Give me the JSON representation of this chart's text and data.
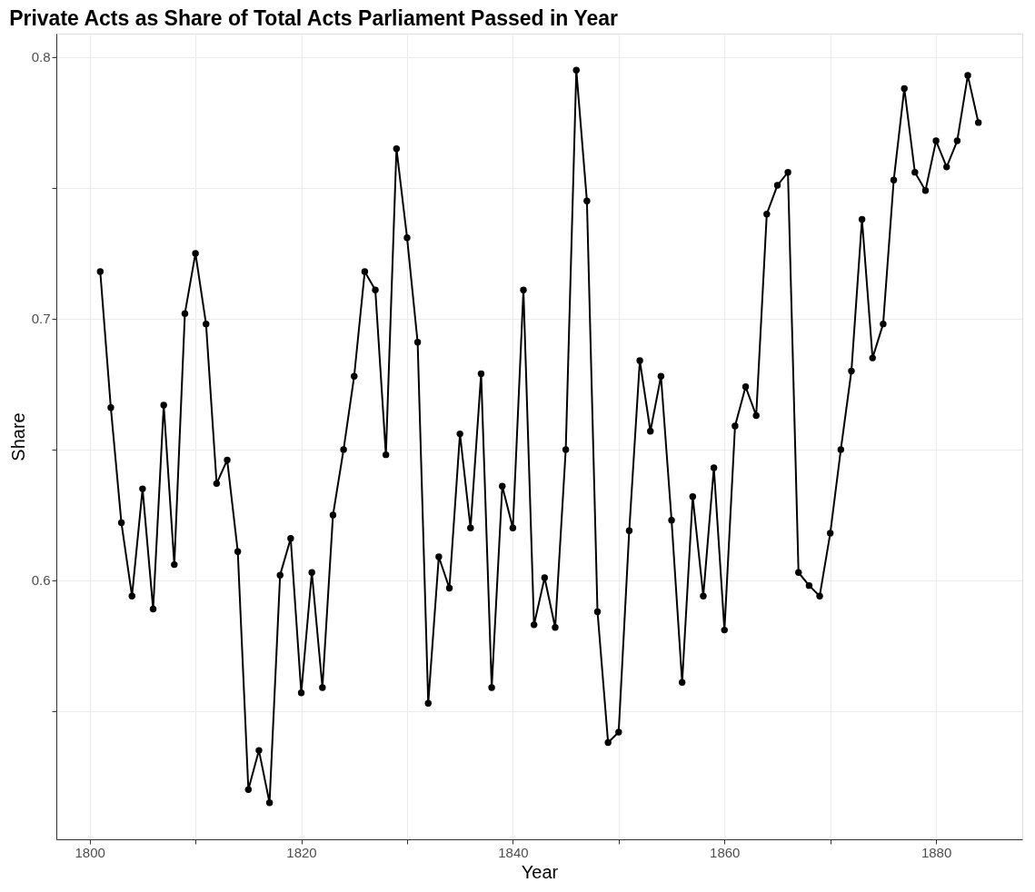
{
  "chart_data": {
    "type": "line",
    "title": "Private Acts as Share of Total Acts Parliament Passed in Year",
    "xlabel": "Year",
    "ylabel": "Share",
    "x": [
      1801,
      1802,
      1803,
      1804,
      1805,
      1806,
      1807,
      1808,
      1809,
      1810,
      1811,
      1812,
      1813,
      1814,
      1815,
      1816,
      1817,
      1818,
      1819,
      1820,
      1821,
      1822,
      1823,
      1824,
      1825,
      1826,
      1827,
      1828,
      1829,
      1830,
      1831,
      1832,
      1833,
      1834,
      1835,
      1836,
      1837,
      1838,
      1839,
      1840,
      1841,
      1842,
      1843,
      1844,
      1845,
      1846,
      1847,
      1848,
      1849,
      1850,
      1851,
      1852,
      1853,
      1854,
      1855,
      1856,
      1857,
      1858,
      1859,
      1860,
      1861,
      1862,
      1863,
      1864,
      1865,
      1866,
      1867,
      1868,
      1869,
      1870,
      1871,
      1872,
      1873,
      1874,
      1875,
      1876,
      1877,
      1878,
      1879,
      1880,
      1881,
      1882,
      1883,
      1884
    ],
    "series": [
      {
        "color": "#000000",
        "values": [
          0.718,
          0.666,
          0.622,
          0.594,
          0.635,
          0.589,
          0.667,
          0.606,
          0.702,
          0.725,
          0.698,
          0.637,
          0.646,
          0.611,
          0.52,
          0.535,
          0.515,
          0.602,
          0.616,
          0.557,
          0.603,
          0.559,
          0.625,
          0.65,
          0.678,
          0.718,
          0.711,
          0.648,
          0.765,
          0.731,
          0.691,
          0.553,
          0.609,
          0.597,
          0.656,
          0.62,
          0.679,
          0.559,
          0.636,
          0.62,
          0.711,
          0.583,
          0.601,
          0.582,
          0.65,
          0.795,
          0.745,
          0.588,
          0.538,
          0.542,
          0.619,
          0.684,
          0.657,
          0.678,
          0.623,
          0.561,
          0.632,
          0.594,
          0.643,
          0.581,
          0.659,
          0.674,
          0.663,
          0.74,
          0.751,
          0.756,
          0.603,
          0.598,
          0.594,
          0.618,
          0.65,
          0.68,
          0.738,
          0.685,
          0.698,
          0.753,
          0.788,
          0.756,
          0.749,
          0.768,
          0.758,
          0.768,
          0.793,
          0.775
        ]
      }
    ],
    "xlim": [
      1796.85,
      1888.15
    ],
    "ylim": [
      0.501,
      0.809
    ],
    "xticks": [
      1800,
      {
        "value": 1810,
        "label": null
      },
      1820,
      {
        "value": 1830,
        "label": null
      },
      1840,
      {
        "value": 1850,
        "label": null
      },
      1860,
      {
        "value": 1870,
        "label": null
      },
      1880
    ],
    "yticks": [
      {
        "value": 0.55,
        "label": null
      },
      0.6,
      {
        "value": 0.65,
        "label": null
      },
      0.7,
      {
        "value": 0.75,
        "label": null
      },
      0.8
    ],
    "grid": true,
    "marker": "circle",
    "line_style": "solid"
  }
}
